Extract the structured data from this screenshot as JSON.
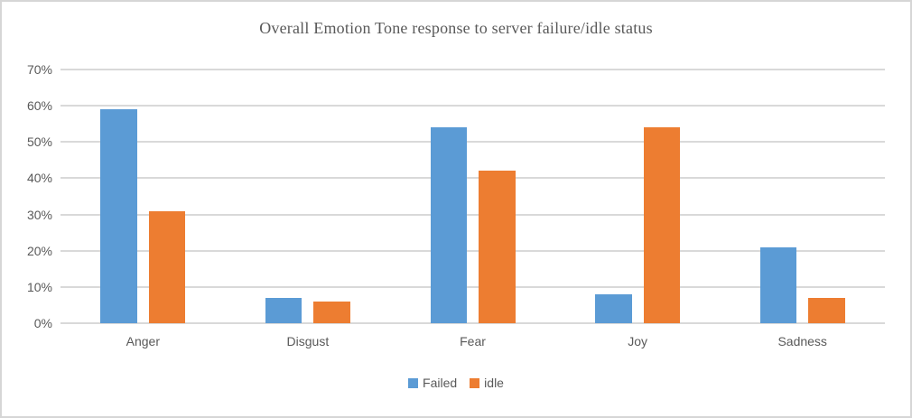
{
  "chart_data": {
    "type": "bar",
    "title": "Overall Emotion Tone response to server failure/idle status",
    "categories": [
      "Anger",
      "Disgust",
      "Fear",
      "Joy",
      "Sadness"
    ],
    "series": [
      {
        "name": "Failed",
        "color": "#5B9BD5",
        "values": [
          59,
          7,
          54,
          8,
          21
        ]
      },
      {
        "name": "idle",
        "color": "#ED7D31",
        "values": [
          31,
          6,
          42,
          54,
          7
        ]
      }
    ],
    "xlabel": "",
    "ylabel": "",
    "ylim": [
      0,
      70
    ],
    "ytick_step": 10,
    "ytick_suffix": "%",
    "grid": true,
    "legend_position": "bottom"
  },
  "styles": {
    "background": "#FFFFFF",
    "frame_border_color": "#D6D6D6",
    "gridline_color": "#D9D9D9",
    "text_color": "#595959"
  }
}
